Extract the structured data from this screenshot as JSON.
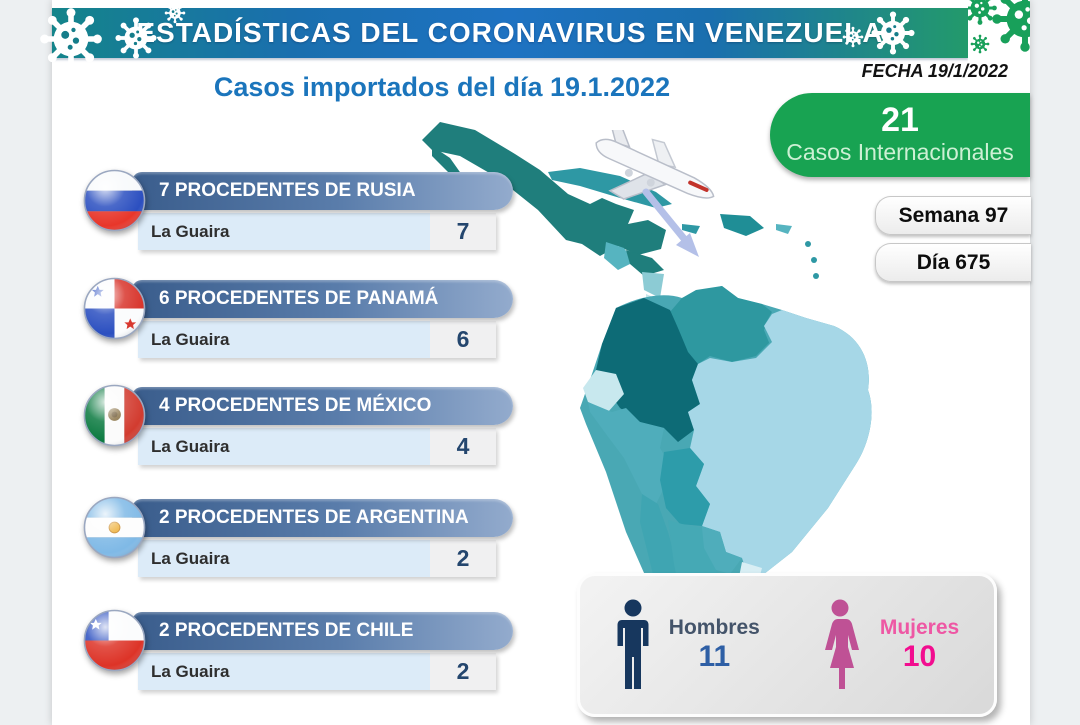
{
  "banner": {
    "title": "ESTADÍSTICAS DEL CORONAVIRUS EN VENEZUELA"
  },
  "meta": {
    "date_label": "FECHA 19/1/2022",
    "week_label": "Semana 97",
    "day_label": "Día 675"
  },
  "page_title": "Casos importados del día 19.1.2022",
  "summary": {
    "total_value": "21",
    "total_label": "Casos Internacionales"
  },
  "rows": [
    {
      "country": "rusia",
      "header": "7 PROCEDENTES DE RUSIA",
      "location": "La Guaira",
      "count": "7"
    },
    {
      "country": "panama",
      "header": "6 PROCEDENTES DE PANAMÁ",
      "location": "La Guaira",
      "count": "6"
    },
    {
      "country": "mexico",
      "header": "4 PROCEDENTES DE MÉXICO",
      "location": "La Guaira",
      "count": "4"
    },
    {
      "country": "argentina",
      "header": "2 PROCEDENTES DE ARGENTINA",
      "location": "La Guaira",
      "count": "2"
    },
    {
      "country": "chile",
      "header": "2 PROCEDENTES DE CHILE",
      "location": "La Guaira",
      "count": "2"
    }
  ],
  "gender": {
    "men_label": "Hombres",
    "men_value": "11",
    "women_label": "Mujeres",
    "women_value": "10"
  },
  "icons": {
    "virus": "virus-icon",
    "airplane": "airplane-icon",
    "route_arrow": "route-arrow",
    "man": "man-icon",
    "woman": "woman-icon",
    "flags": [
      "flag-rusia",
      "flag-panama",
      "flag-mexico",
      "flag-argentina",
      "flag-chile"
    ]
  },
  "colors": {
    "banner_teal": "#14848a",
    "banner_blue": "#1e72c2",
    "banner_green": "#239a6b",
    "accent_green": "#18a352",
    "title_blue": "#1b75bc",
    "header_bar_blue": "#3a5d8c",
    "row_light_blue": "#dcebf8",
    "count_blue": "#24466e",
    "men_navy": "#17375e",
    "men_blue": "#2e5fa5",
    "women_pink": "#bf5195",
    "women_bright_pink": "#f20d8f"
  }
}
